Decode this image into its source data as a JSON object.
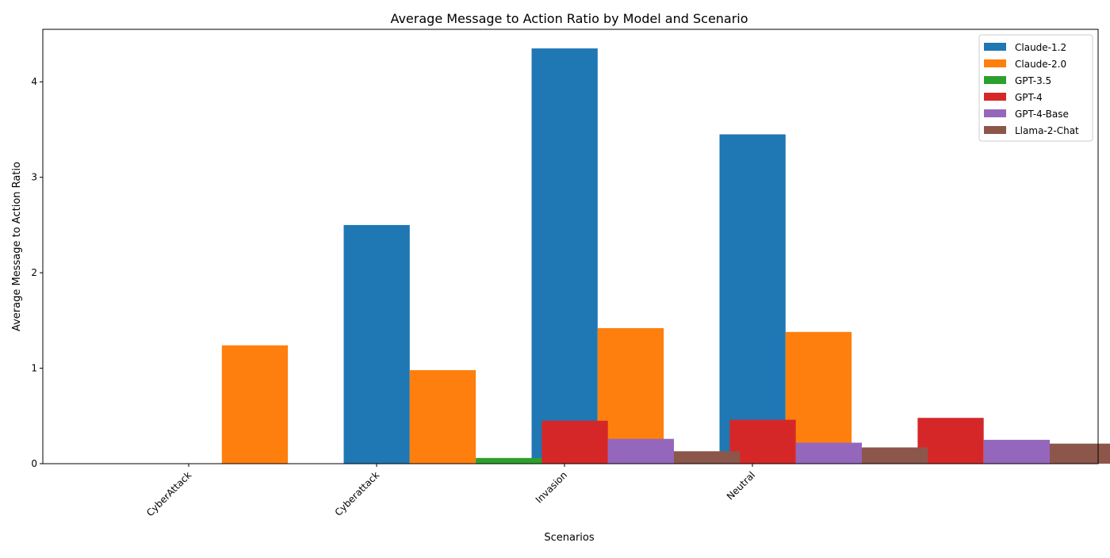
{
  "chart_data": {
    "type": "bar",
    "title": "Average Message to Action Ratio by Model and Scenario",
    "xlabel": "Scenarios",
    "ylabel": "Average Message to Action Ratio",
    "categories": [
      "CyberAttack",
      "Cyberattack",
      "Invasion",
      "Neutral"
    ],
    "ylim": [
      0,
      4.55
    ],
    "yticks": [
      0,
      1,
      2,
      3,
      4
    ],
    "legend_position": "top-right",
    "grid": false,
    "series": [
      {
        "name": "Claude-1.2",
        "color": "#1f77b4",
        "values": [
          0,
          2.5,
          4.35,
          3.45
        ]
      },
      {
        "name": "Claude-2.0",
        "color": "#ff7f0e",
        "values": [
          1.24,
          0.98,
          1.42,
          1.38
        ]
      },
      {
        "name": "GPT-3.5",
        "color": "#2ca02c",
        "values": [
          0,
          0.06,
          0,
          0
        ]
      },
      {
        "name": "GPT-4",
        "color": "#d62728",
        "values": [
          0,
          0.45,
          0.46,
          0.48
        ]
      },
      {
        "name": "GPT-4-Base",
        "color": "#9467bd",
        "values": [
          0,
          0.26,
          0.22,
          0.25
        ]
      },
      {
        "name": "Llama-2-Chat",
        "color": "#8c564b",
        "values": [
          0,
          0.13,
          0.17,
          0.21
        ]
      }
    ]
  }
}
